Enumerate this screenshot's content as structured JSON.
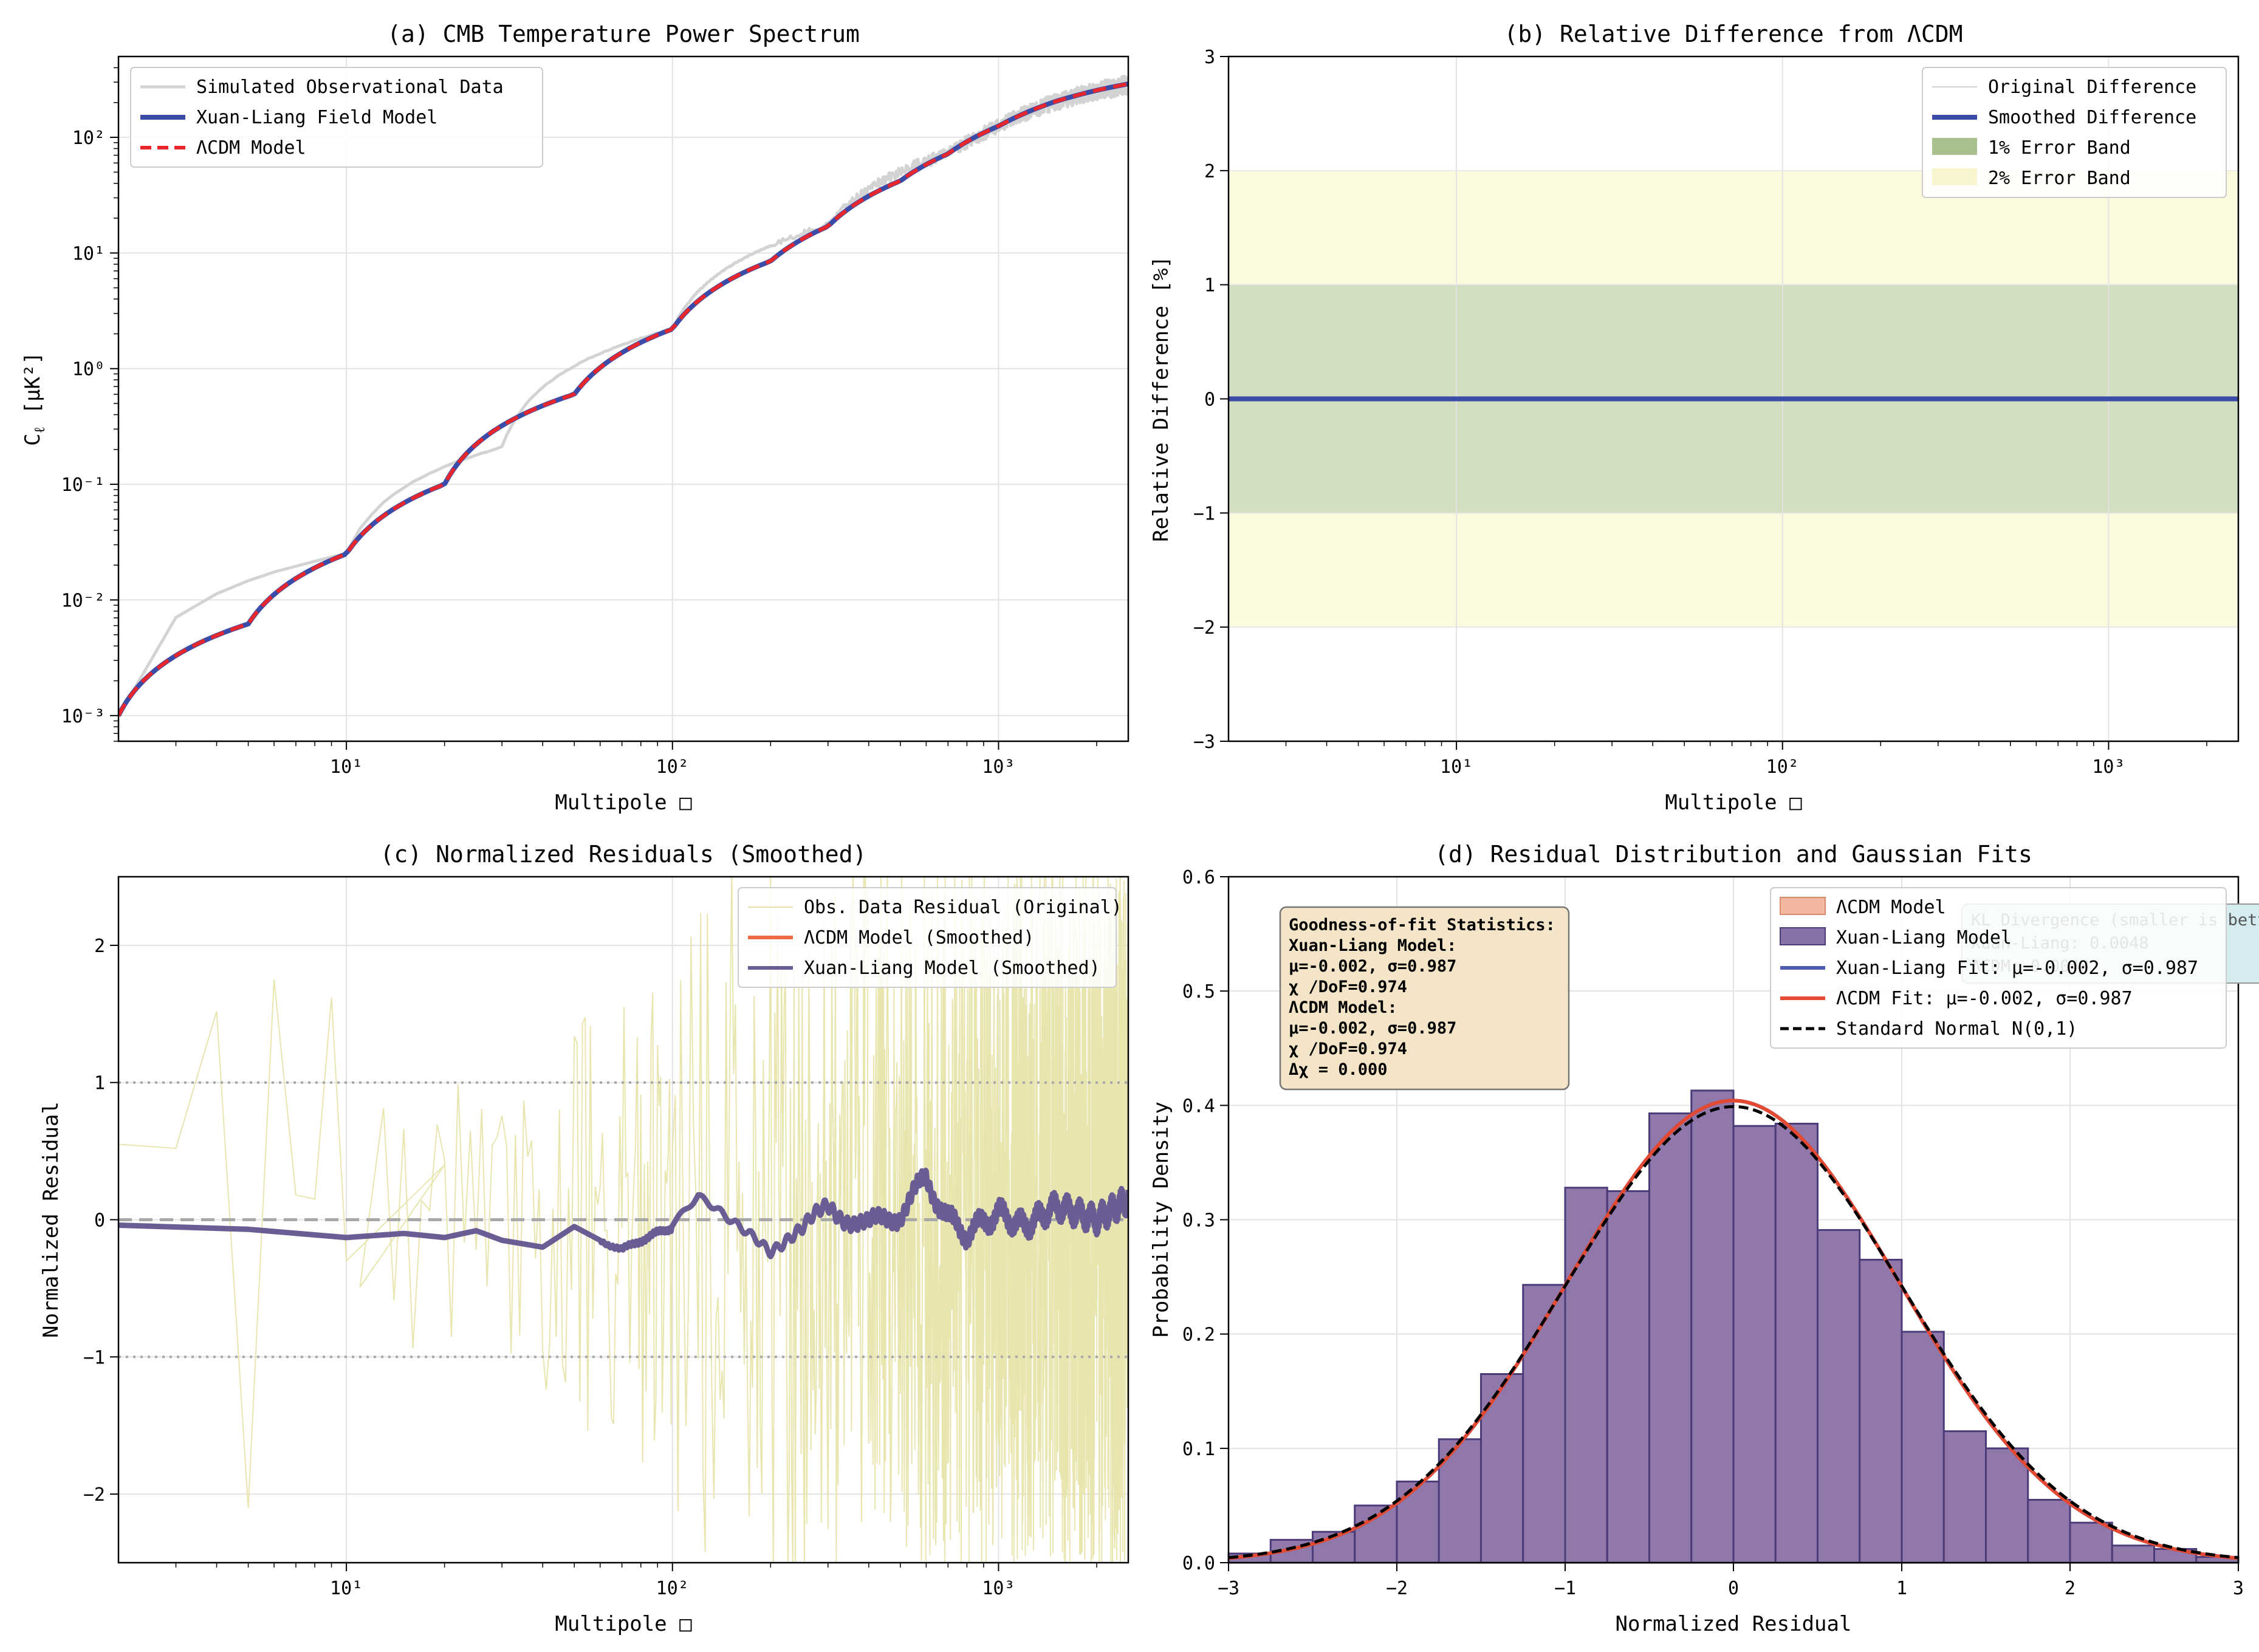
{
  "chart_data": [
    {
      "panel": "a",
      "type": "line",
      "title": "(a) CMB Temperature Power Spectrum",
      "xlabel": "Multipole □",
      "ylabel_main": "C",
      "ylabel_sub": "ℓ",
      "ylabel_unit": " [μK²]",
      "xscale": "log",
      "yscale": "log",
      "xlim": [
        2,
        2500
      ],
      "ylim": [
        0.0006,
        500
      ],
      "xticks": [
        {
          "value": 10,
          "label": "10¹"
        },
        {
          "value": 100,
          "label": "10²"
        },
        {
          "value": 1000,
          "label": "10³"
        }
      ],
      "yticks": [
        {
          "value": 0.001,
          "label": "10⁻³"
        },
        {
          "value": 0.01,
          "label": "10⁻²"
        },
        {
          "value": 0.1,
          "label": "10⁻¹"
        },
        {
          "value": 1,
          "label": "10⁰"
        },
        {
          "value": 10,
          "label": "10¹"
        },
        {
          "value": 100,
          "label": "10²"
        }
      ],
      "grid": true,
      "legend_position": "top-left",
      "series": [
        {
          "name": "Simulated Observational Data",
          "color": "#d3d3d3",
          "style": "solid",
          "width": 5,
          "x": [
            2,
            10,
            30,
            100,
            300,
            700,
            1000,
            1500,
            2000,
            2500
          ],
          "y": [
            0.001,
            0.025,
            0.21,
            2.2,
            17,
            72,
            125,
            205,
            255,
            290
          ]
        },
        {
          "name": "Xuan-Liang Field Model",
          "color": "#3b4ba8",
          "style": "solid",
          "width": 8,
          "x": [
            2,
            5,
            10,
            20,
            50,
            100,
            200,
            300,
            500,
            700,
            1000,
            1500,
            2000,
            2500
          ],
          "y": [
            0.001,
            0.0062,
            0.025,
            0.1,
            0.6,
            2.2,
            8.5,
            17,
            42,
            72,
            125,
            205,
            255,
            290
          ]
        },
        {
          "name": "ΛCDM Model",
          "color": "#e8262b",
          "style": "dashed",
          "width": 6,
          "x": [
            2,
            5,
            10,
            20,
            50,
            100,
            200,
            300,
            500,
            700,
            1000,
            1500,
            2000,
            2500
          ],
          "y": [
            0.001,
            0.0062,
            0.025,
            0.1,
            0.6,
            2.2,
            8.5,
            17,
            42,
            72,
            125,
            205,
            255,
            290
          ]
        }
      ]
    },
    {
      "panel": "b",
      "type": "line",
      "title": "(b) Relative Difference from ΛCDM",
      "xlabel": "Multipole □",
      "ylabel": "Relative Difference [%]",
      "xscale": "log",
      "xlim": [
        2,
        2500
      ],
      "ylim": [
        -3,
        3
      ],
      "xticks": [
        {
          "value": 10,
          "label": "10¹"
        },
        {
          "value": 100,
          "label": "10²"
        },
        {
          "value": 1000,
          "label": "10³"
        }
      ],
      "yticks": [
        {
          "value": -3,
          "label": "−3"
        },
        {
          "value": -2,
          "label": "−2"
        },
        {
          "value": -1,
          "label": "−1"
        },
        {
          "value": 0,
          "label": "0"
        },
        {
          "value": 1,
          "label": "1"
        },
        {
          "value": 2,
          "label": "2"
        },
        {
          "value": 3,
          "label": "3"
        }
      ],
      "grid": true,
      "legend_position": "top-right",
      "bands": [
        {
          "name": "2% Error Band",
          "range": [
            -2,
            2
          ],
          "color": "#fbf9de"
        },
        {
          "name": "1% Error Band",
          "range": [
            -1,
            1
          ],
          "color": "#d3dfc1"
        }
      ],
      "series": [
        {
          "name": "Original Difference",
          "color": "#d8d8d8",
          "width": 2,
          "x": [
            2,
            2500
          ],
          "y": [
            0,
            0
          ]
        },
        {
          "name": "Smoothed Difference",
          "color": "#3b4ba8",
          "width": 8,
          "x": [
            2,
            2500
          ],
          "y": [
            0,
            0
          ]
        }
      ],
      "legend_order": [
        "Original Difference",
        "Smoothed Difference",
        "1% Error Band",
        "2% Error Band"
      ]
    },
    {
      "panel": "c",
      "type": "line",
      "title": "(c) Normalized Residuals (Smoothed)",
      "xlabel": "Multipole □",
      "ylabel": "Normalized Residual",
      "xscale": "log",
      "xlim": [
        2,
        2500
      ],
      "ylim": [
        -2.5,
        2.5
      ],
      "xticks": [
        {
          "value": 10,
          "label": "10¹"
        },
        {
          "value": 100,
          "label": "10²"
        },
        {
          "value": 1000,
          "label": "10³"
        }
      ],
      "yticks": [
        {
          "value": -2,
          "label": "−2"
        },
        {
          "value": -1,
          "label": "−1"
        },
        {
          "value": 0,
          "label": "0"
        },
        {
          "value": 1,
          "label": "1"
        },
        {
          "value": 2,
          "label": "2"
        }
      ],
      "grid": true,
      "reference_lines": [
        {
          "y": 1,
          "style": "dotted"
        },
        {
          "y": -1,
          "style": "dotted"
        },
        {
          "y": 0,
          "style": "dashed"
        }
      ],
      "legend_position": "top-right",
      "series": [
        {
          "name": "Obs. Data Residual (Original)",
          "color": "#e6e2a6",
          "width": 2,
          "noise": true,
          "x": [
            2,
            3,
            4,
            5,
            6,
            7,
            8,
            9,
            10,
            20,
            50,
            100,
            300,
            1000,
            2500
          ],
          "y": [
            0.55,
            0.52,
            1.52,
            -2.1,
            1.75,
            0.18,
            0.15,
            1.62,
            -0.3,
            0.4,
            -1.2,
            1.8,
            -2.3,
            2.3,
            2.4
          ]
        },
        {
          "name": "ΛCDM Model (Smoothed)",
          "color": "#ef6a42",
          "width": 6,
          "x": [
            2,
            5,
            10,
            15,
            20,
            25,
            30,
            40,
            50,
            60,
            70,
            80,
            100,
            120,
            150,
            180,
            200,
            250,
            300,
            400,
            500,
            600,
            700,
            800,
            1000,
            1200,
            1500,
            2000,
            2500
          ],
          "y": [
            -0.04,
            -0.07,
            -0.13,
            -0.1,
            -0.13,
            -0.08,
            -0.15,
            -0.2,
            -0.05,
            -0.15,
            -0.22,
            -0.15,
            -0.05,
            0.15,
            0.0,
            -0.1,
            -0.2,
            -0.1,
            0.1,
            -0.05,
            0.05,
            0.3,
            0.0,
            -0.1,
            0.05,
            -0.05,
            0.1,
            0.0,
            0.15
          ]
        },
        {
          "name": "Xuan-Liang Model (Smoothed)",
          "color": "#6a5d94",
          "width": 9,
          "x": [
            2,
            5,
            10,
            15,
            20,
            25,
            30,
            40,
            50,
            60,
            70,
            80,
            100,
            120,
            150,
            180,
            200,
            250,
            300,
            400,
            500,
            600,
            700,
            800,
            1000,
            1200,
            1500,
            2000,
            2500
          ],
          "y": [
            -0.04,
            -0.07,
            -0.13,
            -0.1,
            -0.13,
            -0.08,
            -0.15,
            -0.2,
            -0.05,
            -0.15,
            -0.22,
            -0.15,
            -0.05,
            0.15,
            0.0,
            -0.1,
            -0.2,
            -0.1,
            0.1,
            -0.05,
            0.05,
            0.3,
            0.0,
            -0.1,
            0.05,
            -0.05,
            0.1,
            0.0,
            0.15
          ]
        }
      ]
    },
    {
      "panel": "d",
      "type": "bar",
      "title": "(d) Residual Distribution and Gaussian Fits",
      "xlabel": "Normalized Residual",
      "ylabel": "Probability Density",
      "xlim": [
        -3,
        3
      ],
      "ylim": [
        0,
        0.6
      ],
      "xticks": [
        {
          "value": -3,
          "label": "−3"
        },
        {
          "value": -2,
          "label": "−2"
        },
        {
          "value": -1,
          "label": "−1"
        },
        {
          "value": 0,
          "label": "0"
        },
        {
          "value": 1,
          "label": "1"
        },
        {
          "value": 2,
          "label": "2"
        },
        {
          "value": 3,
          "label": "3"
        }
      ],
      "yticks": [
        {
          "value": 0,
          "label": "0.0"
        },
        {
          "value": 0.1,
          "label": "0.1"
        },
        {
          "value": 0.2,
          "label": "0.2"
        },
        {
          "value": 0.3,
          "label": "0.3"
        },
        {
          "value": 0.4,
          "label": "0.4"
        },
        {
          "value": 0.5,
          "label": "0.5"
        },
        {
          "value": 0.6,
          "label": "0.6"
        }
      ],
      "grid": true,
      "legend_position": "top-right",
      "bin_edges": [
        -3.0,
        -2.75,
        -2.5,
        -2.25,
        -2.0,
        -1.75,
        -1.5,
        -1.25,
        -1.0,
        -0.75,
        -0.5,
        -0.25,
        0.0,
        0.25,
        0.5,
        0.75,
        1.0,
        1.25,
        1.5,
        1.75,
        2.0,
        2.25,
        2.5,
        2.75,
        3.0
      ],
      "histograms": [
        {
          "name": "ΛCDM Model",
          "color": "#f2b79f",
          "values": [
            0.008,
            0.02,
            0.027,
            0.05,
            0.071,
            0.108,
            0.165,
            0.243,
            0.328,
            0.325,
            0.393,
            0.413,
            0.382,
            0.384,
            0.291,
            0.265,
            0.202,
            0.115,
            0.1,
            0.055,
            0.035,
            0.015,
            0.012,
            0.005
          ]
        },
        {
          "name": "Xuan-Liang Model",
          "color": "#8871a8",
          "values": [
            0.008,
            0.02,
            0.027,
            0.05,
            0.071,
            0.108,
            0.165,
            0.243,
            0.328,
            0.325,
            0.393,
            0.413,
            0.382,
            0.384,
            0.291,
            0.265,
            0.202,
            0.115,
            0.1,
            0.055,
            0.035,
            0.015,
            0.012,
            0.005
          ]
        }
      ],
      "fits": [
        {
          "name": "Xuan-Liang Fit: μ=-0.002, σ=0.987",
          "color": "#4f5bb0",
          "style": "solid",
          "mu": -0.002,
          "sigma": 0.987
        },
        {
          "name": "ΛCDM Fit: μ=-0.002, σ=0.987",
          "color": "#e34a33",
          "style": "solid",
          "mu": -0.002,
          "sigma": 0.987
        },
        {
          "name": "Standard Normal N(0,1)",
          "color": "#000000",
          "style": "dashed",
          "mu": 0,
          "sigma": 1
        }
      ],
      "stats_box": {
        "lines": [
          "Goodness-of-fit Statistics:",
          "Xuan-Liang Model:",
          "  μ=-0.002, σ=0.987",
          "  χ  /DoF=0.974",
          "ΛCDM Model:",
          "  μ=-0.002, σ=0.987",
          "  χ  /DoF=0.974",
          "Δχ  = 0.000"
        ]
      },
      "kl_box": {
        "lines": [
          "KL Divergence (smaller is better):",
          "Xuan-Liang: 0.0048",
          "ΛCDM: 0.0048"
        ]
      }
    }
  ]
}
